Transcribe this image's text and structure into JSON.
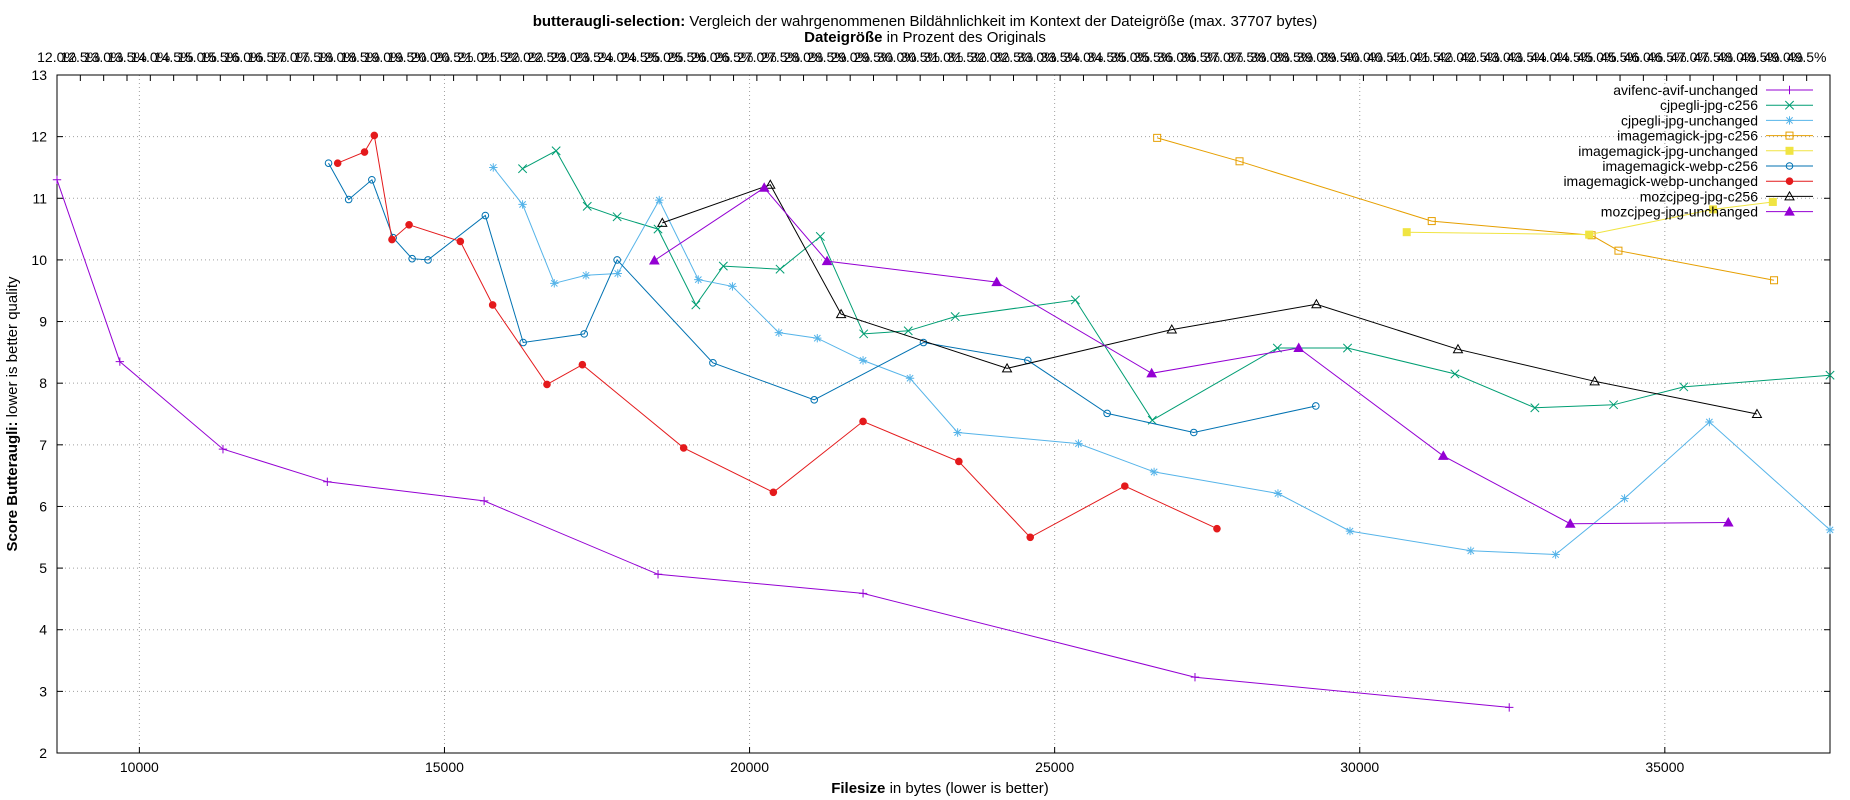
{
  "chart_data": {
    "type": "line",
    "title_bold": "butteraugli-selection:",
    "title_rest": " Vergleich der wahrgenommenen Bildähnlichkeit im Kontext der Dateigröße (max. 37707 bytes)",
    "subtitle_bold": "Dateigröße",
    "subtitle_rest": " in Prozent des Originals",
    "xlabel_bold": "Filesize",
    "xlabel_rest": " in bytes (lower is better)",
    "ylabel_bold": "Score Butteraugli:",
    "ylabel_rest": " lower is better quality",
    "xlim": [
      8650,
      37707
    ],
    "ylim": [
      2,
      13
    ],
    "x_ticks": [
      10000,
      15000,
      20000,
      25000,
      30000,
      35000
    ],
    "y_ticks": [
      2,
      3,
      4,
      5,
      6,
      7,
      8,
      9,
      10,
      11,
      12,
      13
    ],
    "x2_ticks": [
      "12.0%",
      "12.5%",
      "13.0%",
      "13.5%",
      "14.0%",
      "14.5%",
      "15.0%",
      "15.5%",
      "16.0%",
      "16.5%",
      "17.0%",
      "17.5%",
      "18.0%",
      "18.5%",
      "19.0%",
      "19.5%",
      "20.0%",
      "20.5%",
      "21.0%",
      "21.5%",
      "22.0%",
      "22.5%",
      "23.0%",
      "23.5%",
      "24.0%",
      "24.5%",
      "25.0%",
      "25.5%",
      "26.0%",
      "26.5%",
      "27.0%",
      "27.5%",
      "28.0%",
      "28.5%",
      "29.0%",
      "29.5%",
      "30.0%",
      "30.5%",
      "31.0%",
      "31.5%",
      "32.0%",
      "32.5%",
      "33.0%",
      "33.5%",
      "34.0%",
      "34.5%",
      "35.0%",
      "35.5%",
      "36.0%",
      "36.5%",
      "37.0%",
      "37.5%",
      "38.0%",
      "38.5%",
      "39.0%",
      "39.5%",
      "40.0%",
      "40.5%",
      "41.0%",
      "41.5%",
      "42.0%",
      "42.5%",
      "43.0%",
      "43.5%",
      "44.0%",
      "44.5%",
      "45.0%",
      "45.5%",
      "46.0%",
      "46.5%",
      "47.0%",
      "47.5%",
      "48.0%",
      "48.5%",
      "49.0%",
      "49.5%"
    ],
    "grid": true,
    "legend_position": "top-right",
    "series": [
      {
        "name": "avifenc-avif-unchanged",
        "color": "#9400d3",
        "marker": "plus",
        "points": [
          [
            8650,
            11.3
          ],
          [
            9680,
            8.35
          ],
          [
            11370,
            6.93
          ],
          [
            13080,
            6.4
          ],
          [
            15650,
            6.09
          ],
          [
            18500,
            4.9
          ],
          [
            21860,
            4.59
          ],
          [
            27300,
            3.23
          ],
          [
            32450,
            2.74
          ]
        ]
      },
      {
        "name": "cjpegli-jpg-c256",
        "color": "#009e73",
        "marker": "cross",
        "points": [
          [
            16280,
            11.48
          ],
          [
            16830,
            11.77
          ],
          [
            17340,
            10.87
          ],
          [
            17830,
            10.7
          ],
          [
            18500,
            10.5
          ],
          [
            19120,
            9.27
          ],
          [
            19570,
            9.9
          ],
          [
            20500,
            9.85
          ],
          [
            21160,
            10.38
          ],
          [
            21870,
            8.8
          ],
          [
            22600,
            8.85
          ],
          [
            23370,
            9.08
          ],
          [
            25340,
            9.35
          ],
          [
            26600,
            7.4
          ],
          [
            28650,
            8.57
          ],
          [
            29800,
            8.57
          ],
          [
            31560,
            8.15
          ],
          [
            32870,
            7.6
          ],
          [
            34160,
            7.65
          ],
          [
            35310,
            7.94
          ],
          [
            37707,
            8.13
          ]
        ]
      },
      {
        "name": "cjpegli-jpg-unchanged",
        "color": "#56b4e9",
        "marker": "star",
        "points": [
          [
            15800,
            11.5
          ],
          [
            16280,
            10.9
          ],
          [
            16800,
            9.62
          ],
          [
            17320,
            9.75
          ],
          [
            17840,
            9.78
          ],
          [
            18520,
            10.97
          ],
          [
            19160,
            9.68
          ],
          [
            19720,
            9.57
          ],
          [
            20480,
            8.82
          ],
          [
            21110,
            8.73
          ],
          [
            21860,
            8.37
          ],
          [
            22630,
            8.08
          ],
          [
            23410,
            7.2
          ],
          [
            25390,
            7.02
          ],
          [
            26630,
            6.56
          ],
          [
            28660,
            6.21
          ],
          [
            29840,
            5.6
          ],
          [
            31820,
            5.28
          ],
          [
            33210,
            5.22
          ],
          [
            34340,
            6.13
          ],
          [
            35730,
            7.37
          ],
          [
            37707,
            5.62
          ]
        ]
      },
      {
        "name": "imagemagick-jpg-c256",
        "color": "#e69f00",
        "marker": "square",
        "points": [
          [
            26680,
            11.98
          ],
          [
            28030,
            11.6
          ],
          [
            31180,
            10.63
          ],
          [
            33800,
            10.4
          ],
          [
            34240,
            10.15
          ],
          [
            36790,
            9.67
          ]
        ]
      },
      {
        "name": "imagemagick-jpg-unchanged",
        "color": "#f0e442",
        "marker": "filled-square",
        "points": [
          [
            30770,
            10.45
          ],
          [
            33760,
            10.41
          ],
          [
            35790,
            10.82
          ],
          [
            36770,
            10.94
          ]
        ]
      },
      {
        "name": "imagemagick-webp-c256",
        "color": "#0072b2",
        "marker": "circle",
        "points": [
          [
            13100,
            11.57
          ],
          [
            13430,
            10.98
          ],
          [
            13810,
            11.3
          ],
          [
            14160,
            10.36
          ],
          [
            14470,
            10.02
          ],
          [
            14730,
            10
          ],
          [
            15670,
            10.72
          ],
          [
            16290,
            8.66
          ],
          [
            17290,
            8.8
          ],
          [
            17830,
            10
          ],
          [
            19400,
            8.33
          ],
          [
            21060,
            7.73
          ],
          [
            22850,
            8.66
          ],
          [
            24560,
            8.37
          ],
          [
            25860,
            7.51
          ],
          [
            27280,
            7.2
          ],
          [
            29280,
            7.63
          ]
        ]
      },
      {
        "name": "imagemagick-webp-unchanged",
        "color": "#e41a1c",
        "marker": "filled-circle",
        "points": [
          [
            13250,
            11.57
          ],
          [
            13690,
            11.75
          ],
          [
            13850,
            12.02
          ],
          [
            14140,
            10.33
          ],
          [
            14420,
            10.57
          ],
          [
            15260,
            10.3
          ],
          [
            15790,
            9.27
          ],
          [
            16680,
            7.98
          ],
          [
            17260,
            8.3
          ],
          [
            18920,
            6.95
          ],
          [
            20390,
            6.23
          ],
          [
            21860,
            7.38
          ],
          [
            23430,
            6.73
          ],
          [
            24600,
            5.5
          ],
          [
            26150,
            6.33
          ],
          [
            27660,
            5.64
          ]
        ]
      },
      {
        "name": "mozcjpeg-jpg-c256",
        "color": "#000000",
        "marker": "triangle",
        "points": [
          [
            18570,
            10.6
          ],
          [
            20340,
            11.22
          ],
          [
            21500,
            9.12
          ],
          [
            24220,
            8.24
          ],
          [
            26920,
            8.87
          ],
          [
            29290,
            9.28
          ],
          [
            31610,
            8.55
          ],
          [
            33850,
            8.03
          ],
          [
            36510,
            7.5
          ]
        ]
      },
      {
        "name": "mozcjpeg-jpg-unchanged",
        "color": "#9400d3",
        "marker": "filled-triangle",
        "points": [
          [
            18440,
            9.99
          ],
          [
            20240,
            11.17
          ],
          [
            21270,
            9.98
          ],
          [
            24050,
            9.64
          ],
          [
            26590,
            8.16
          ],
          [
            29000,
            8.57
          ],
          [
            31370,
            6.82
          ],
          [
            33450,
            5.72
          ],
          [
            36040,
            5.74
          ]
        ]
      }
    ]
  }
}
